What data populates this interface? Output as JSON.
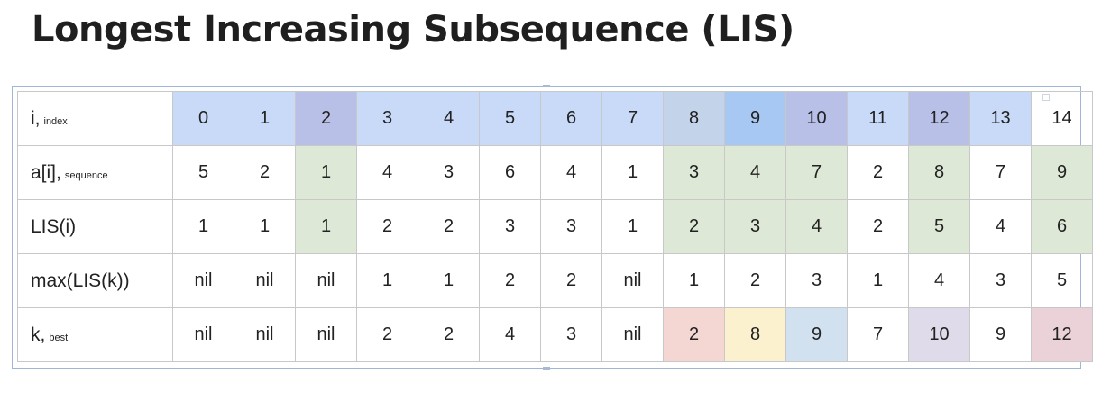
{
  "title": "Longest Increasing Subsequence (LIS)",
  "rows": {
    "index": {
      "label": "i,",
      "sub": "index",
      "cells": [
        "0",
        "1",
        "2",
        "3",
        "4",
        "5",
        "6",
        "7",
        "8",
        "9",
        "10",
        "11",
        "12",
        "13",
        "14"
      ]
    },
    "sequence": {
      "label": "a[i],",
      "sub": "sequence",
      "cells": [
        "5",
        "2",
        "1",
        "4",
        "3",
        "6",
        "4",
        "1",
        "3",
        "4",
        "7",
        "2",
        "8",
        "7",
        "9"
      ]
    },
    "lis": {
      "label": "LIS(i)",
      "sub": "",
      "cells": [
        "1",
        "1",
        "1",
        "2",
        "2",
        "3",
        "3",
        "1",
        "2",
        "3",
        "4",
        "2",
        "5",
        "4",
        "6"
      ]
    },
    "maxlis": {
      "label": "max(LIS(k))",
      "sub": "",
      "cells": [
        "nil",
        "nil",
        "nil",
        "1",
        "1",
        "2",
        "2",
        "nil",
        "1",
        "2",
        "3",
        "1",
        "4",
        "3",
        "5"
      ]
    },
    "best": {
      "label": "k,",
      "sub": "best",
      "cells": [
        "nil",
        "nil",
        "nil",
        "2",
        "2",
        "4",
        "3",
        "nil",
        "2",
        "8",
        "9",
        "7",
        "10",
        "9",
        "12"
      ]
    }
  },
  "colors": {
    "index_header": "#c8daf7",
    "highlight_green": "#dde9d6",
    "best_red": "#f4d7d2",
    "best_yellow": "#fbf1cf",
    "best_blue": "#d2e1f0",
    "best_lavender": "#dfdbea",
    "best_pink": "#ead2d8"
  }
}
